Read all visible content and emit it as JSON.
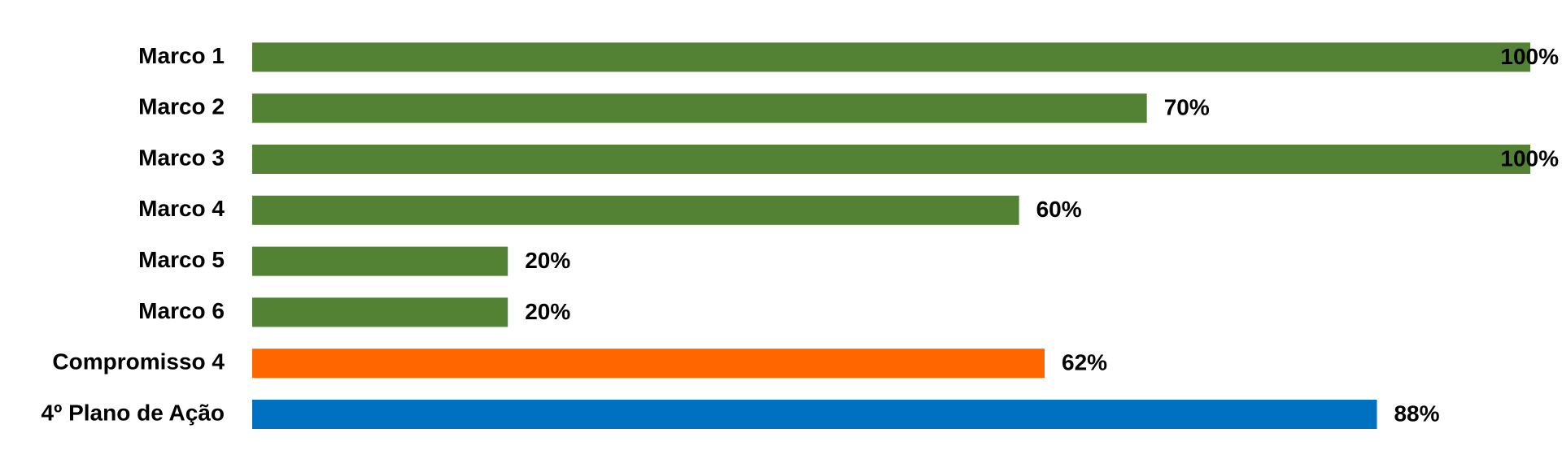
{
  "chart_data": {
    "type": "bar",
    "orientation": "horizontal",
    "categories": [
      "Marco 1",
      "Marco 2",
      "Marco 3",
      "Marco 4",
      "Marco 5",
      "Marco 6",
      "Compromisso 4",
      "4º Plano de Ação"
    ],
    "values": [
      100,
      70,
      100,
      60,
      20,
      20,
      62,
      88
    ],
    "value_labels": [
      "100%",
      "70%",
      "100%",
      "60%",
      "20%",
      "20%",
      "62%",
      "88%"
    ],
    "colors": [
      "#548235",
      "#548235",
      "#548235",
      "#548235",
      "#548235",
      "#548235",
      "#ff6600",
      "#0070c0"
    ],
    "xlim": [
      0,
      100
    ]
  }
}
